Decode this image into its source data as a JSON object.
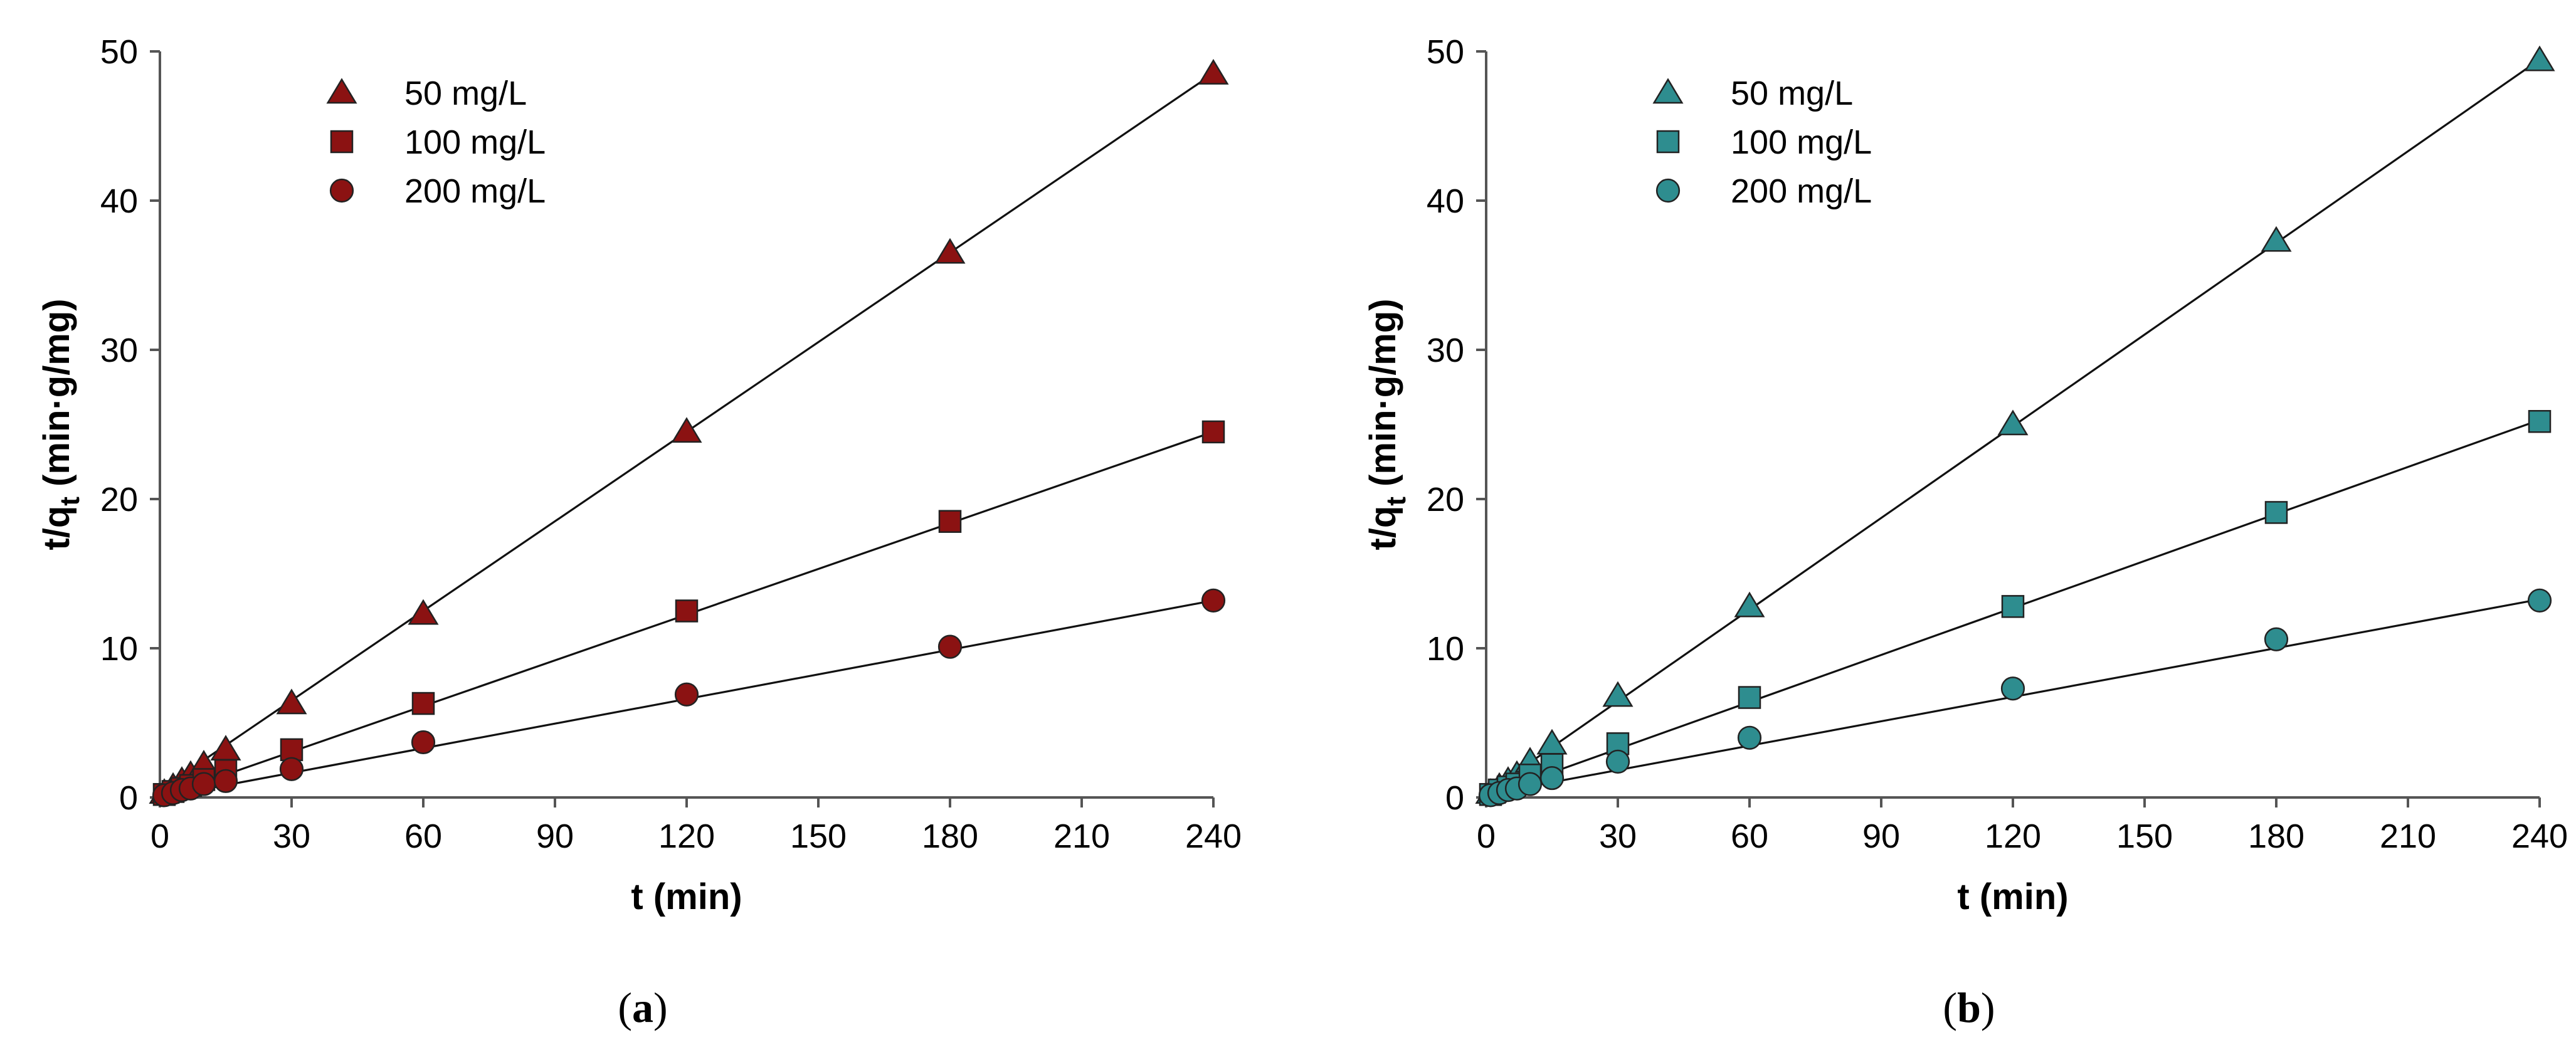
{
  "chart_data": [
    {
      "type": "scatter",
      "panel": "a",
      "panel_label_open": "(",
      "panel_label": "a",
      "panel_label_close": ")",
      "xlabel": "t (min)",
      "ylabel_main": "t/q",
      "ylabel_sub": "t",
      "ylabel_unit": " (min·g/mg)",
      "xlim": [
        0,
        240
      ],
      "ylim": [
        0,
        50
      ],
      "xticks": [
        0,
        30,
        60,
        90,
        120,
        150,
        180,
        210,
        240
      ],
      "yticks": [
        0,
        10,
        20,
        30,
        40,
        50
      ],
      "grid": false,
      "legend_position": "top-left",
      "marker_color": "#8b1212",
      "fit_lines": true,
      "series": [
        {
          "name": "50 mg/L",
          "marker": "triangle",
          "x": [
            1,
            3,
            5,
            7,
            10,
            15,
            30,
            60,
            120,
            180,
            240
          ],
          "y": [
            0.3,
            0.7,
            1.1,
            1.5,
            2.2,
            3.2,
            6.3,
            12.3,
            24.5,
            36.5,
            48.5
          ],
          "fit": [
            0.5,
            0.2001
          ]
        },
        {
          "name": "100 mg/L",
          "marker": "square",
          "x": [
            1,
            3,
            5,
            7,
            10,
            15,
            30,
            60,
            120,
            180,
            240
          ],
          "y": [
            0.2,
            0.4,
            0.6,
            0.8,
            1.2,
            1.8,
            3.2,
            6.3,
            12.5,
            18.5,
            24.5
          ],
          "fit": [
            0.0,
            0.1021
          ]
        },
        {
          "name": "200 mg/L",
          "marker": "circle",
          "x": [
            1,
            3,
            5,
            7,
            10,
            15,
            30,
            60,
            120,
            180,
            240
          ],
          "y": [
            0.15,
            0.3,
            0.5,
            0.6,
            0.9,
            1.1,
            1.9,
            3.7,
            6.9,
            10.1,
            13.2
          ],
          "fit": [
            0.0,
            0.055
          ]
        }
      ]
    },
    {
      "type": "scatter",
      "panel": "b",
      "panel_label_open": "(",
      "panel_label": "b",
      "panel_label_close": ")",
      "xlabel": "t (min)",
      "ylabel_main": "t/q",
      "ylabel_sub": "t",
      "ylabel_unit": " (min·g/mg)",
      "xlim": [
        0,
        240
      ],
      "ylim": [
        0,
        50
      ],
      "xticks": [
        0,
        30,
        60,
        90,
        120,
        150,
        180,
        210,
        240
      ],
      "yticks": [
        0,
        10,
        20,
        30,
        40,
        50
      ],
      "grid": false,
      "legend_position": "top-left",
      "marker_color": "#2e8d8f",
      "fit_lines": true,
      "series": [
        {
          "name": "50 mg/L",
          "marker": "triangle",
          "x": [
            1,
            3,
            5,
            7,
            10,
            15,
            30,
            60,
            120,
            180,
            240
          ],
          "y": [
            0.3,
            0.7,
            1.1,
            1.5,
            2.4,
            3.6,
            6.8,
            12.8,
            25.0,
            37.3,
            49.4
          ],
          "fit": [
            0.3,
            0.2048
          ]
        },
        {
          "name": "100 mg/L",
          "marker": "square",
          "x": [
            1,
            3,
            5,
            7,
            10,
            15,
            30,
            60,
            120,
            180,
            240
          ],
          "y": [
            0.2,
            0.5,
            0.7,
            0.9,
            1.5,
            2.2,
            3.6,
            6.7,
            12.8,
            19.1,
            25.2
          ],
          "fit": [
            0.1,
            0.105
          ]
        },
        {
          "name": "200 mg/L",
          "marker": "circle",
          "x": [
            1,
            3,
            5,
            7,
            10,
            15,
            30,
            60,
            120,
            180,
            240
          ],
          "y": [
            0.15,
            0.3,
            0.5,
            0.6,
            0.9,
            1.3,
            2.4,
            4.0,
            7.3,
            10.6,
            13.2
          ],
          "fit": [
            0.2,
            0.0545
          ]
        }
      ]
    }
  ]
}
